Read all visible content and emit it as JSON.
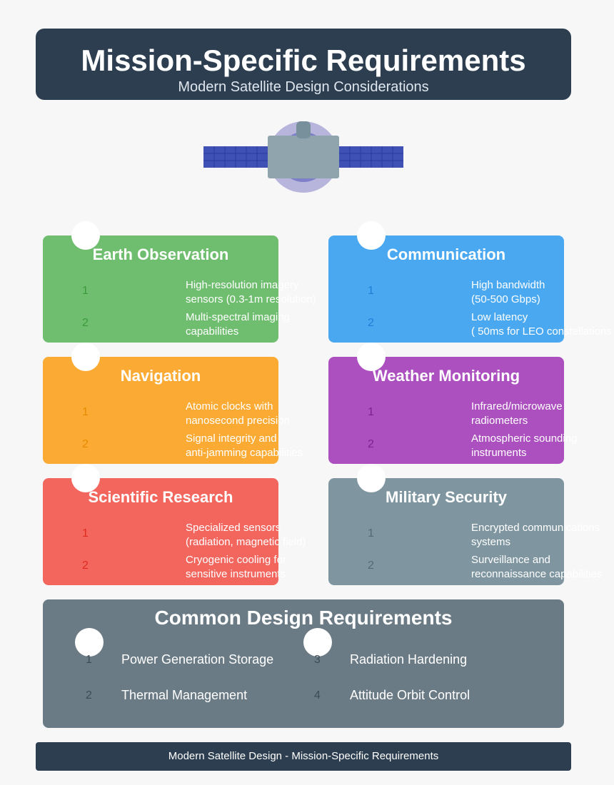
{
  "header": {
    "title": "Mission-Specific Requirements",
    "subtitle": "Modern Satellite Design Considerations"
  },
  "cards": [
    {
      "title": "Earth Observation",
      "color": "#6fbe6f",
      "num_color": "#3a9a3a",
      "items": [
        {
          "num": "1",
          "text": "High-resolution imagery\nsensors (0.3-1m resolution)"
        },
        {
          "num": "2",
          "text": "Multi-spectral imaging\ncapabilities"
        }
      ]
    },
    {
      "title": "Communication",
      "color": "#4aa8f0",
      "num_color": "#1e7fd6",
      "items": [
        {
          "num": "1",
          "text": "High bandwidth\n(50-500 Gbps)"
        },
        {
          "num": "2",
          "text": "Low latency\n( 50ms for LEO constellations"
        }
      ]
    },
    {
      "title": "Navigation",
      "color": "#fbab34",
      "num_color": "#e88a00",
      "items": [
        {
          "num": "1",
          "text": "Atomic clocks with\nnanosecond precision"
        },
        {
          "num": "2",
          "text": "Signal integrity and\nanti-jamming capabilities"
        }
      ]
    },
    {
      "title": "Weather Monitoring",
      "color": "#ac50c0",
      "num_color": "#7b2290",
      "items": [
        {
          "num": "1",
          "text": "Infrared/microwave\nradiometers"
        },
        {
          "num": "2",
          "text": "Atmospheric sounding\ninstruments"
        }
      ]
    },
    {
      "title": "Scientific Research",
      "color": "#f2665e",
      "num_color": "#e02a20",
      "items": [
        {
          "num": "1",
          "text": "Specialized sensors\n(radiation, magnetic field)"
        },
        {
          "num": "2",
          "text": "Cryogenic cooling for\nsensitive instruments"
        }
      ]
    },
    {
      "title": "Military Security",
      "color": "#7f96a1",
      "num_color": "#546a75",
      "items": [
        {
          "num": "1",
          "text": "Encrypted communications\nsystems"
        },
        {
          "num": "2",
          "text": "Surveillance and\nreconnaissance capabilities"
        }
      ]
    }
  ],
  "common": {
    "title": "Common Design Requirements",
    "items": [
      {
        "num": "1",
        "text": "Power Generation Storage"
      },
      {
        "num": "2",
        "text": "Thermal Management"
      },
      {
        "num": "3",
        "text": "Radiation Hardening"
      },
      {
        "num": "4",
        "text": "Attitude Orbit Control"
      }
    ]
  },
  "footer": {
    "text": "Modern Satellite Design - Mission-Specific Requirements"
  },
  "icons": {
    "satellite": "satellite-icon"
  }
}
